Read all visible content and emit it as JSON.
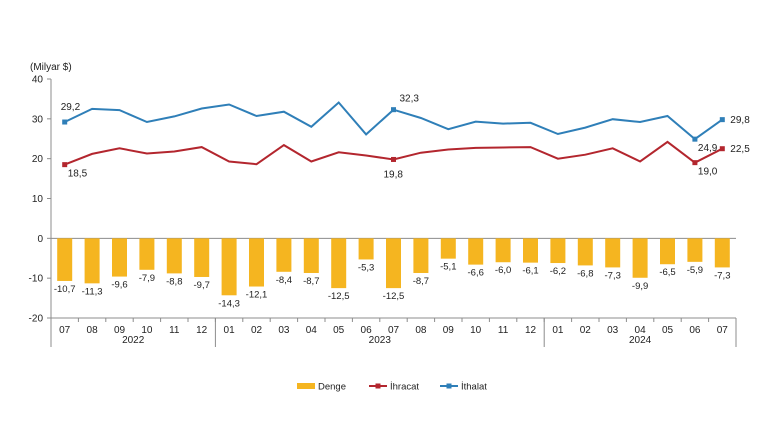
{
  "chart_data": {
    "type": "bar",
    "unit_label": "(Milyar $)",
    "categories": [
      "07",
      "08",
      "09",
      "10",
      "11",
      "12",
      "01",
      "02",
      "03",
      "04",
      "05",
      "06",
      "07",
      "08",
      "09",
      "10",
      "11",
      "12",
      "01",
      "02",
      "03",
      "04",
      "05",
      "06",
      "07"
    ],
    "year_groups": [
      {
        "label": "2022",
        "start": 0,
        "end": 5
      },
      {
        "label": "2023",
        "start": 6,
        "end": 17
      },
      {
        "label": "2024",
        "start": 18,
        "end": 24
      }
    ],
    "ylim": [
      -20,
      40
    ],
    "yticks": [
      -20,
      -10,
      0,
      10,
      20,
      30,
      40
    ],
    "series": [
      {
        "name": "Denge",
        "kind": "bar",
        "color": "#f5b520",
        "values": [
          -10.7,
          -11.3,
          -9.6,
          -7.9,
          -8.8,
          -9.7,
          -14.3,
          -12.1,
          -8.4,
          -8.7,
          -12.5,
          -5.3,
          -12.5,
          -8.7,
          -5.1,
          -6.6,
          -6.0,
          -6.1,
          -6.2,
          -6.8,
          -7.3,
          -9.9,
          -6.5,
          -5.9,
          -7.3
        ],
        "value_labels": [
          "-10,7",
          "-11,3",
          "-9,6",
          "-7,9",
          "-8,8",
          "-9,7",
          "-14,3",
          "-12,1",
          "-8,4",
          "-8,7",
          "-12,5",
          "-5,3",
          "-12,5",
          "-8,7",
          "-5,1",
          "-6,6",
          "-6,0",
          "-6,1",
          "-6,2",
          "-6,8",
          "-7,3",
          "-9,9",
          "-6,5",
          "-5,9",
          "-7,3"
        ]
      },
      {
        "name": "İhracat",
        "kind": "line",
        "color": "#b3262e",
        "values": [
          18.5,
          21.2,
          22.6,
          21.3,
          21.8,
          22.9,
          19.3,
          18.6,
          23.4,
          19.3,
          21.6,
          20.8,
          19.8,
          21.5,
          22.3,
          22.7,
          22.8,
          22.9,
          20.0,
          21.0,
          22.6,
          19.3,
          24.2,
          19.0,
          22.5
        ],
        "point_labels": [
          {
            "index": 0,
            "text": "18,5"
          },
          {
            "index": 12,
            "text": "19,8"
          },
          {
            "index": 23,
            "text": "19,0"
          },
          {
            "index": 24,
            "text": "22,5"
          }
        ]
      },
      {
        "name": "İthalat",
        "kind": "line",
        "color": "#2f7fb8",
        "values": [
          29.2,
          32.5,
          32.2,
          29.2,
          30.6,
          32.6,
          33.6,
          30.7,
          31.8,
          28.0,
          34.1,
          26.1,
          32.3,
          30.2,
          27.4,
          29.3,
          28.8,
          29.0,
          26.2,
          27.8,
          29.9,
          29.2,
          30.7,
          24.9,
          29.8
        ],
        "point_labels": [
          {
            "index": 0,
            "text": "29,2"
          },
          {
            "index": 12,
            "text": "32,3"
          },
          {
            "index": 23,
            "text": "24,9"
          },
          {
            "index": 24,
            "text": "29,8"
          }
        ]
      }
    ],
    "legend": [
      "Denge",
      "İhracat",
      "İthalat"
    ],
    "legend_position": "bottom",
    "grid": false
  }
}
